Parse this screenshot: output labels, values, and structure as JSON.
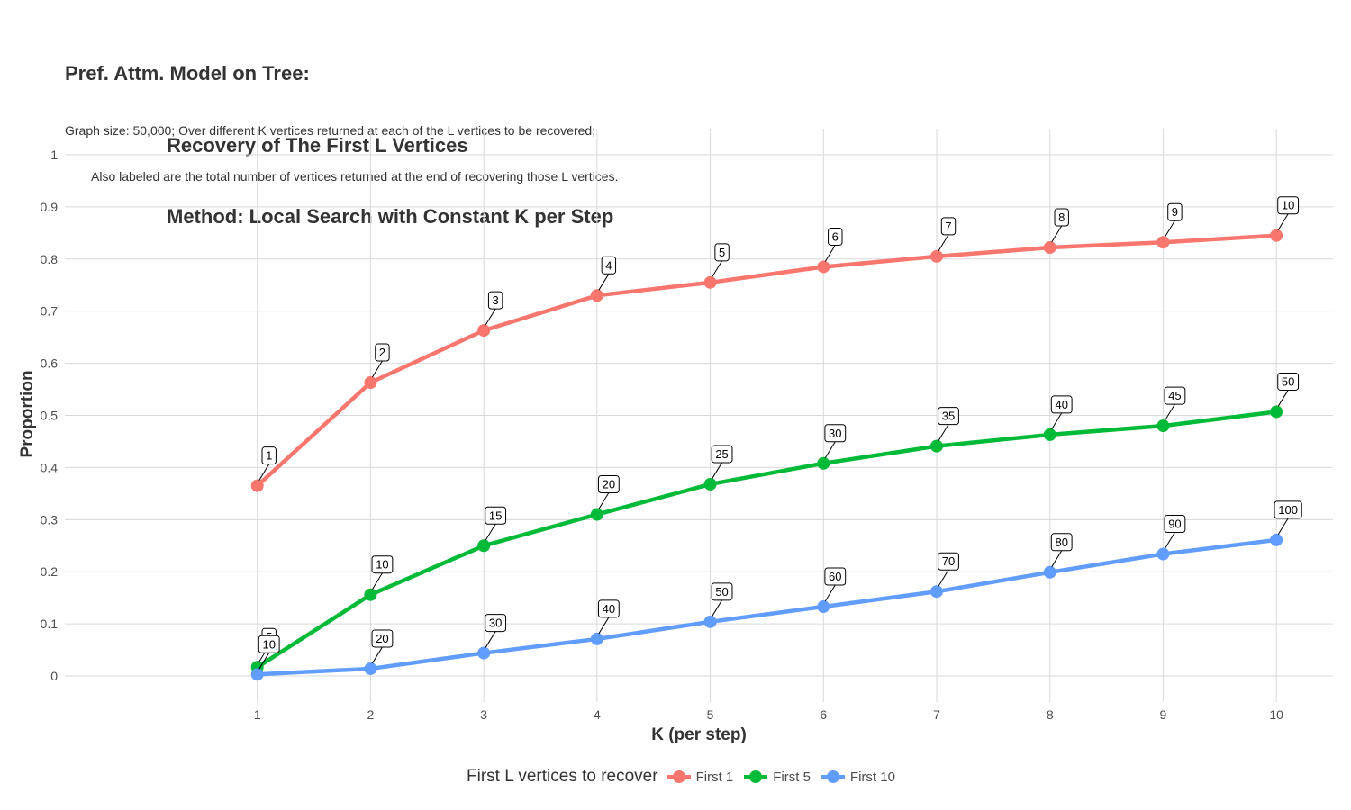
{
  "title_lines": [
    "Pref. Attm. Model on Tree:",
    "Recovery of The First L Vertices",
    "Method: Local Search with Constant K per Step"
  ],
  "subtitle_lines": [
    "Graph size: 50,000; Over different K vertices returned at each of the L vertices to be recovered;",
    "Also labeled are the total number of vertices returned at the end of recovering those L vertices."
  ],
  "chart_data": {
    "type": "line",
    "xlabel": "K (per step)",
    "ylabel": "Proportion",
    "x": [
      1,
      2,
      3,
      4,
      5,
      6,
      7,
      8,
      9,
      10
    ],
    "xlim": [
      -0.7,
      10.5
    ],
    "ylim": [
      -0.05,
      1.05
    ],
    "x_ticks": [
      1,
      2,
      3,
      4,
      5,
      6,
      7,
      8,
      9,
      10
    ],
    "y_ticks": [
      0,
      0.1,
      0.2,
      0.3,
      0.4,
      0.5,
      0.6,
      0.7,
      0.8,
      0.9,
      1
    ],
    "y_tick_labels": [
      "0",
      "0.1",
      "0.2",
      "0.3",
      "0.4",
      "0.5",
      "0.6",
      "0.7",
      "0.8",
      "0.9",
      "1"
    ],
    "grid": true,
    "legend_title": "First L vertices to recover",
    "legend_position": "bottom",
    "series": [
      {
        "name": "First 1",
        "color": "#F8766D",
        "values": [
          0.365,
          0.563,
          0.663,
          0.73,
          0.755,
          0.785,
          0.805,
          0.822,
          0.832,
          0.845
        ],
        "labels": [
          "1",
          "2",
          "3",
          "4",
          "5",
          "6",
          "7",
          "8",
          "9",
          "10"
        ]
      },
      {
        "name": "First 5",
        "color": "#00BA38",
        "values": [
          0.017,
          0.156,
          0.25,
          0.31,
          0.368,
          0.408,
          0.441,
          0.463,
          0.48,
          0.507
        ],
        "labels": [
          "5",
          "10",
          "15",
          "20",
          "25",
          "30",
          "35",
          "40",
          "45",
          "50"
        ]
      },
      {
        "name": "First 10",
        "color": "#619CFF",
        "values": [
          0.003,
          0.014,
          0.044,
          0.071,
          0.104,
          0.133,
          0.162,
          0.199,
          0.234,
          0.261
        ],
        "labels": [
          "10",
          "20",
          "30",
          "40",
          "50",
          "60",
          "70",
          "80",
          "90",
          "100"
        ]
      }
    ]
  }
}
